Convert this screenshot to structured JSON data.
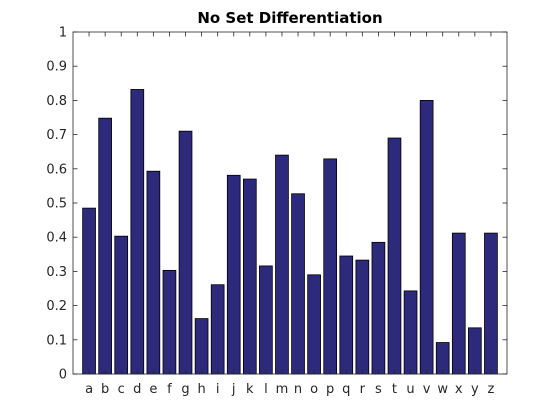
{
  "chart_data": {
    "type": "bar",
    "title": "No Set Differentiation",
    "xlabel": "",
    "ylabel": "",
    "categories": [
      "a",
      "b",
      "c",
      "d",
      "e",
      "f",
      "g",
      "h",
      "i",
      "j",
      "k",
      "l",
      "m",
      "n",
      "o",
      "p",
      "q",
      "r",
      "s",
      "t",
      "u",
      "v",
      "w",
      "x",
      "y",
      "z"
    ],
    "values": [
      0.485,
      0.748,
      0.403,
      0.832,
      0.593,
      0.303,
      0.71,
      0.162,
      0.261,
      0.581,
      0.57,
      0.316,
      0.64,
      0.527,
      0.29,
      0.629,
      0.345,
      0.333,
      0.385,
      0.69,
      0.243,
      0.8,
      0.092,
      0.412,
      0.135,
      0.412
    ],
    "ylim": [
      0,
      1
    ],
    "yticks": [
      "0",
      "0.1",
      "0.2",
      "0.3",
      "0.4",
      "0.5",
      "0.6",
      "0.7",
      "0.8",
      "0.9",
      "1"
    ],
    "grid": false,
    "legend": "none",
    "colors": {
      "bar_fill": "#2d2a7c",
      "bar_edge": "#000000",
      "axes": "#262626",
      "background": "#ffffff"
    }
  }
}
